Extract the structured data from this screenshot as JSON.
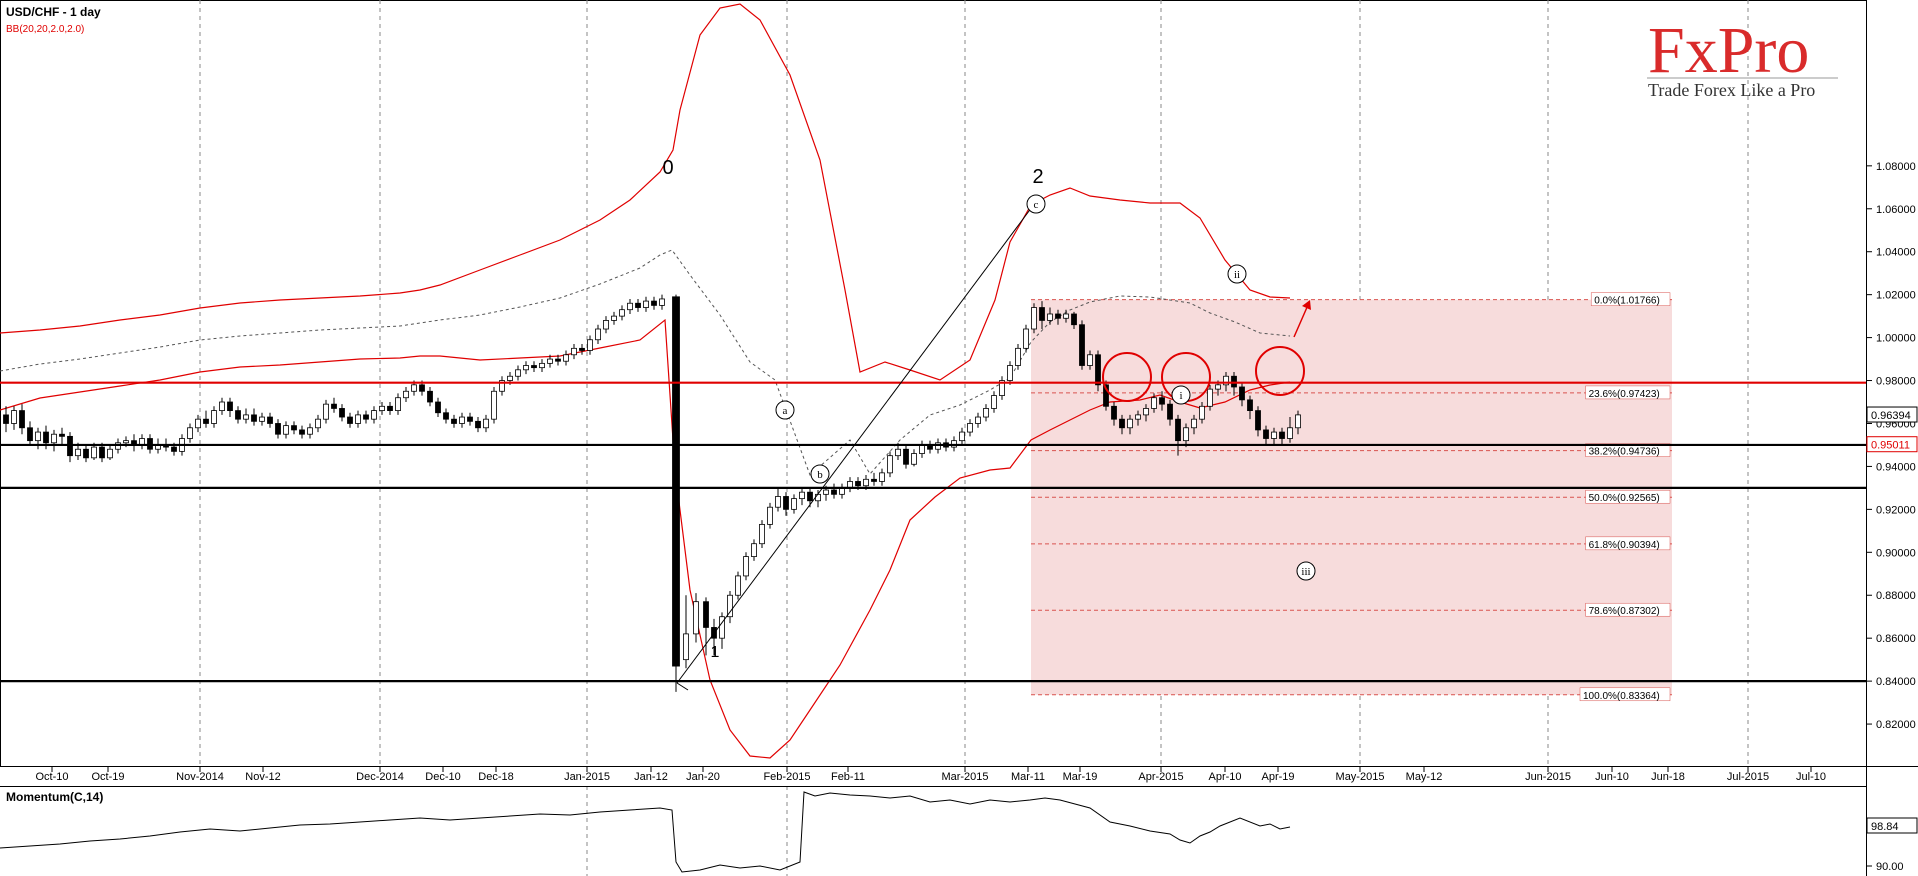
{
  "chart_data": {
    "type": "candlestick",
    "title": "USD/CHF - 1 day",
    "indicator_label": "BB(20,20,2.0,2.0)",
    "momentum_label": "Momentum(C,14)",
    "ylim": [
      0.8,
      1.09
    ],
    "y_ticks": [
      "1.08000",
      "1.06000",
      "1.04000",
      "1.02000",
      "1.00000",
      "0.98000",
      "0.96000",
      "0.94000",
      "0.92000",
      "0.90000",
      "0.88000",
      "0.86000",
      "0.84000",
      "0.82000"
    ],
    "x_ticks": [
      "Oct-10",
      "Oct-19",
      "Nov-2014",
      "Nov-12",
      "Dec-2014",
      "Dec-10",
      "Dec-18",
      "Jan-2015",
      "Jan-12",
      "Jan-20",
      "Feb-2015",
      "Feb-11",
      "Mar-2015",
      "Mar-11",
      "Mar-19",
      "Apr-2015",
      "Apr-10",
      "Apr-19",
      "May-2015",
      "May-12",
      "Jun-2015",
      "Jun-10",
      "Jun-18",
      "Jul-2015",
      "Jul-10"
    ],
    "price_tags": [
      {
        "label": "0.96394",
        "value": 0.96394,
        "style": "outline"
      },
      {
        "label": "0.95011",
        "value": 0.95011,
        "style": "red"
      }
    ],
    "momentum_ticks": [
      "98.84",
      "90.00"
    ],
    "horizontal_lines": [
      {
        "value": 0.979,
        "color": "#e00000"
      },
      {
        "value": 0.95,
        "color": "#000000"
      },
      {
        "value": 0.93,
        "color": "#000000"
      },
      {
        "value": 0.84,
        "color": "#000000"
      }
    ],
    "fibonacci": [
      {
        "label": "0.0%(1.01766)",
        "value": 1.01766
      },
      {
        "label": "23.6%(0.97423)",
        "value": 0.97423
      },
      {
        "label": "38.2%(0.94736)",
        "value": 0.94736
      },
      {
        "label": "50.0%(0.92565)",
        "value": 0.92565
      },
      {
        "label": "61.8%(0.90394)",
        "value": 0.90394
      },
      {
        "label": "78.6%(0.87302)",
        "value": 0.87302
      },
      {
        "label": "100.0%(0.83364)",
        "value": 0.83364
      }
    ],
    "wave_labels": [
      "0",
      "1",
      "2",
      "a",
      "b",
      "c",
      "i",
      "ii",
      "iii"
    ]
  },
  "logo": {
    "brand": "FxPro",
    "tagline": "Trade Forex Like a Pro"
  },
  "colors": {
    "bull": "#ffffff",
    "bear": "#000000",
    "bollinger": "#e00000",
    "fib_zone": "#f7dcdc",
    "fib_line": "#d9534f",
    "grid": "#777777"
  }
}
